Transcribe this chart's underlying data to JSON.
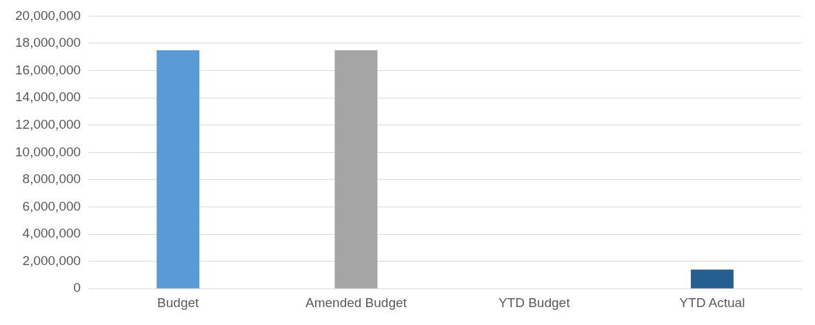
{
  "chart_data": {
    "type": "bar",
    "categories": [
      "Budget",
      "Amended Budget",
      "YTD Budget",
      "YTD Actual"
    ],
    "values": [
      17500000,
      17500000,
      0,
      1400000
    ],
    "colors": [
      "#5b9bd5",
      "#a5a5a5",
      "#4472c4",
      "#255e91"
    ],
    "ylim": [
      0,
      20000000
    ],
    "yticks": [
      0,
      {
        "value": 2000000,
        "label": "2,000,000"
      },
      {
        "value": 4000000,
        "label": "4,000,000"
      },
      {
        "value": 6000000,
        "label": "6,000,000"
      },
      {
        "value": 8000000,
        "label": "8,000,000"
      },
      {
        "value": 10000000,
        "label": "10,000,000"
      },
      {
        "value": 12000000,
        "label": "12,000,000"
      },
      {
        "value": 14000000,
        "label": "14,000,000"
      },
      {
        "value": 16000000,
        "label": "16,000,000"
      },
      {
        "value": 18000000,
        "label": "18,000,000"
      },
      {
        "value": 20000000,
        "label": "20,000,000"
      }
    ],
    "grid": "y"
  }
}
